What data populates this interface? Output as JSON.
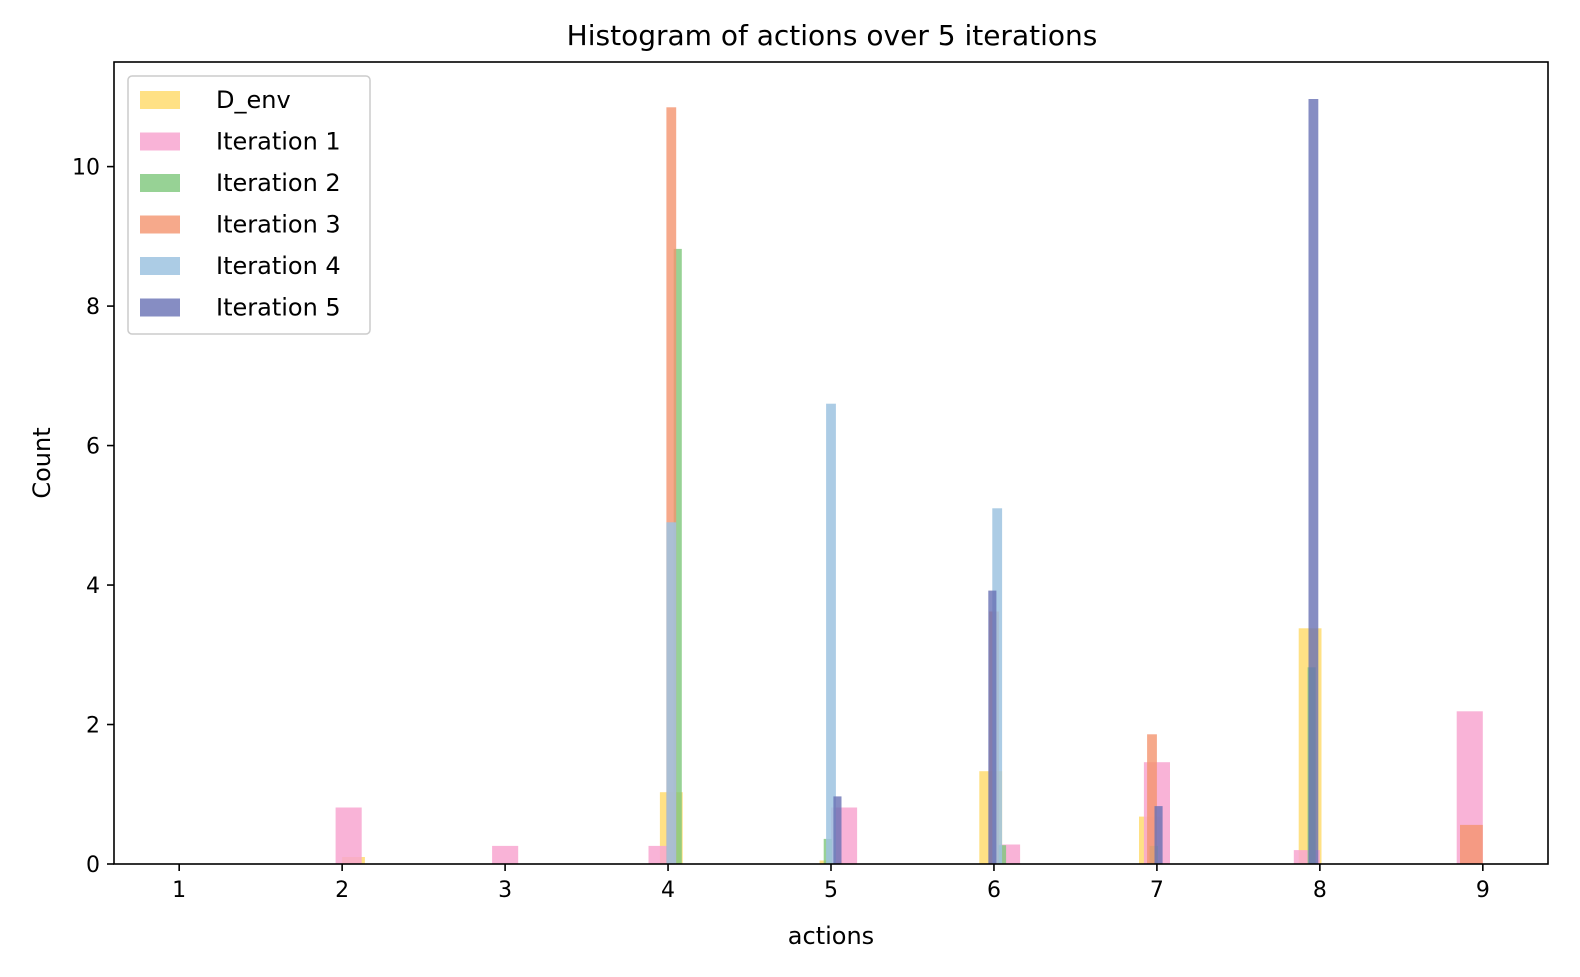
{
  "chart_data": {
    "type": "bar",
    "title": "Histogram of actions over 5 iterations",
    "xlabel": "actions",
    "ylabel": "Count",
    "xlim": [
      0.6,
      9.4
    ],
    "ylim": [
      0,
      11.5
    ],
    "xticks": [
      1,
      2,
      3,
      4,
      5,
      6,
      7,
      8,
      9
    ],
    "yticks": [
      0,
      2,
      4,
      6,
      8,
      10
    ],
    "legend_position": "top-left",
    "grid": false,
    "series": [
      {
        "name": "D_env",
        "color": "#FFD966",
        "opacity": 0.8,
        "bars": [
          {
            "x": 2.07,
            "width": 0.14,
            "value": 0.1
          },
          {
            "x": 4.02,
            "width": 0.14,
            "value": 1.03
          },
          {
            "x": 5.0,
            "width": 0.14,
            "value": 0.05
          },
          {
            "x": 5.98,
            "width": 0.14,
            "value": 1.33
          },
          {
            "x": 6.96,
            "width": 0.14,
            "value": 0.68
          },
          {
            "x": 7.94,
            "width": 0.14,
            "value": 3.38
          }
        ]
      },
      {
        "name": "Iteration 1",
        "color": "#F8A6D0",
        "opacity": 0.85,
        "bars": [
          {
            "x": 2.04,
            "width": 0.16,
            "value": 0.81
          },
          {
            "x": 3.0,
            "width": 0.16,
            "value": 0.26
          },
          {
            "x": 3.96,
            "width": 0.16,
            "value": 0.26
          },
          {
            "x": 5.08,
            "width": 0.16,
            "value": 0.81
          },
          {
            "x": 6.08,
            "width": 0.16,
            "value": 0.28
          },
          {
            "x": 7.0,
            "width": 0.16,
            "value": 1.46
          },
          {
            "x": 7.92,
            "width": 0.16,
            "value": 0.2
          },
          {
            "x": 8.92,
            "width": 0.16,
            "value": 2.19
          }
        ]
      },
      {
        "name": "Iteration 2",
        "color": "#7DC77A",
        "opacity": 0.8,
        "bars": [
          {
            "x": 4.06,
            "width": 0.05,
            "value": 8.82
          },
          {
            "x": 4.98,
            "width": 0.05,
            "value": 0.36
          },
          {
            "x": 6.05,
            "width": 0.05,
            "value": 0.27
          },
          {
            "x": 6.98,
            "width": 0.05,
            "value": 0.26
          },
          {
            "x": 7.95,
            "width": 0.05,
            "value": 2.82
          }
        ]
      },
      {
        "name": "Iteration 3",
        "color": "#F4936E",
        "opacity": 0.8,
        "bars": [
          {
            "x": 4.02,
            "width": 0.06,
            "value": 10.85
          },
          {
            "x": 6.0,
            "width": 0.06,
            "value": 3.62
          },
          {
            "x": 6.97,
            "width": 0.06,
            "value": 1.86
          },
          {
            "x": 8.93,
            "width": 0.14,
            "value": 0.56
          }
        ]
      },
      {
        "name": "Iteration 4",
        "color": "#9EC3E0",
        "opacity": 0.85,
        "bars": [
          {
            "x": 4.02,
            "width": 0.06,
            "value": 4.9
          },
          {
            "x": 5.0,
            "width": 0.06,
            "value": 6.6
          },
          {
            "x": 6.02,
            "width": 0.06,
            "value": 5.1
          }
        ]
      },
      {
        "name": "Iteration 5",
        "color": "#6870B4",
        "opacity": 0.8,
        "bars": [
          {
            "x": 5.04,
            "width": 0.05,
            "value": 0.97
          },
          {
            "x": 5.99,
            "width": 0.05,
            "value": 3.92
          },
          {
            "x": 7.01,
            "width": 0.05,
            "value": 0.83
          },
          {
            "x": 7.96,
            "width": 0.06,
            "value": 10.97
          }
        ]
      }
    ]
  }
}
